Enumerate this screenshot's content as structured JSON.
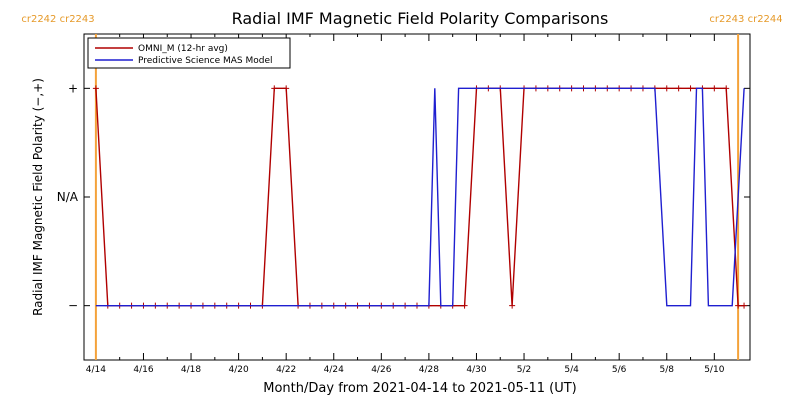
{
  "chart_data": {
    "type": "line",
    "title": "Radial IMF Magnetic Field Polarity Comparisons",
    "xlabel": "Month/Day from 2021-04-14 to 2021-05-11 (UT)",
    "ylabel": "Radial IMF Magnetic Field Polarity (−,+)",
    "x_range": [
      "2021-04-14",
      "2021-05-11"
    ],
    "x_ticks": [
      {
        "date": "2021-04-14",
        "label": "4/14"
      },
      {
        "date": "2021-04-16",
        "label": "4/16"
      },
      {
        "date": "2021-04-18",
        "label": "4/18"
      },
      {
        "date": "2021-04-20",
        "label": "4/20"
      },
      {
        "date": "2021-04-22",
        "label": "4/22"
      },
      {
        "date": "2021-04-24",
        "label": "4/24"
      },
      {
        "date": "2021-04-26",
        "label": "4/26"
      },
      {
        "date": "2021-04-28",
        "label": "4/28"
      },
      {
        "date": "2021-04-30",
        "label": "4/30"
      },
      {
        "date": "2021-05-02",
        "label": "5/2"
      },
      {
        "date": "2021-05-04",
        "label": "5/4"
      },
      {
        "date": "2021-05-06",
        "label": "5/6"
      },
      {
        "date": "2021-05-08",
        "label": "5/8"
      },
      {
        "date": "2021-05-10",
        "label": "5/10"
      }
    ],
    "y_ticks": [
      {
        "value": 1,
        "label": "+"
      },
      {
        "value": 0,
        "label": "N/A"
      },
      {
        "value": -1,
        "label": "−"
      }
    ],
    "ylim": [
      -1.5,
      1.5
    ],
    "carrington_markers": [
      {
        "date": "2021-04-14",
        "label": "cr2242 cr2243",
        "position": "left"
      },
      {
        "date": "2021-05-11",
        "label": "cr2243 cr2244",
        "position": "right"
      }
    ],
    "colors": {
      "omni": "#b00000",
      "model": "#1f1fd0",
      "marker_line": "#f4a23a",
      "cr_text": "#e69a2a"
    },
    "series": [
      {
        "name": "OMNI_M (12-hr avg)",
        "color": "#b00000",
        "markers": "+",
        "points": [
          [
            "2021-04-14T00:00",
            1
          ],
          [
            "2021-04-14T12:00",
            -1
          ],
          [
            "2021-04-15T00:00",
            -1
          ],
          [
            "2021-04-15T12:00",
            -1
          ],
          [
            "2021-04-16T00:00",
            -1
          ],
          [
            "2021-04-16T12:00",
            -1
          ],
          [
            "2021-04-17T00:00",
            -1
          ],
          [
            "2021-04-17T12:00",
            -1
          ],
          [
            "2021-04-18T00:00",
            -1
          ],
          [
            "2021-04-18T12:00",
            -1
          ],
          [
            "2021-04-19T00:00",
            -1
          ],
          [
            "2021-04-19T12:00",
            -1
          ],
          [
            "2021-04-20T00:00",
            -1
          ],
          [
            "2021-04-20T12:00",
            -1
          ],
          [
            "2021-04-21T00:00",
            -1
          ],
          [
            "2021-04-21T12:00",
            1
          ],
          [
            "2021-04-22T00:00",
            1
          ],
          [
            "2021-04-22T12:00",
            -1
          ],
          [
            "2021-04-23T00:00",
            -1
          ],
          [
            "2021-04-23T12:00",
            -1
          ],
          [
            "2021-04-24T00:00",
            -1
          ],
          [
            "2021-04-24T12:00",
            -1
          ],
          [
            "2021-04-25T00:00",
            -1
          ],
          [
            "2021-04-25T12:00",
            -1
          ],
          [
            "2021-04-26T00:00",
            -1
          ],
          [
            "2021-04-26T12:00",
            -1
          ],
          [
            "2021-04-27T00:00",
            -1
          ],
          [
            "2021-04-27T12:00",
            -1
          ],
          [
            "2021-04-28T00:00",
            -1
          ],
          [
            "2021-04-28T12:00",
            -1
          ],
          [
            "2021-04-29T00:00",
            -1
          ],
          [
            "2021-04-29T12:00",
            -1
          ],
          [
            "2021-04-30T00:00",
            1
          ],
          [
            "2021-04-30T12:00",
            1
          ],
          [
            "2021-05-01T00:00",
            1
          ],
          [
            "2021-05-01T12:00",
            -1
          ],
          [
            "2021-05-02T00:00",
            1
          ],
          [
            "2021-05-02T12:00",
            1
          ],
          [
            "2021-05-03T00:00",
            1
          ],
          [
            "2021-05-03T12:00",
            1
          ],
          [
            "2021-05-04T00:00",
            1
          ],
          [
            "2021-05-04T12:00",
            1
          ],
          [
            "2021-05-05T00:00",
            1
          ],
          [
            "2021-05-05T12:00",
            1
          ],
          [
            "2021-05-06T00:00",
            1
          ],
          [
            "2021-05-06T12:00",
            1
          ],
          [
            "2021-05-07T00:00",
            1
          ],
          [
            "2021-05-07T12:00",
            1
          ],
          [
            "2021-05-08T00:00",
            1
          ],
          [
            "2021-05-08T12:00",
            1
          ],
          [
            "2021-05-09T00:00",
            1
          ],
          [
            "2021-05-09T12:00",
            1
          ],
          [
            "2021-05-10T00:00",
            1
          ],
          [
            "2021-05-10T12:00",
            1
          ],
          [
            "2021-05-11T00:00",
            -1
          ],
          [
            "2021-05-11T06:00",
            -1
          ]
        ]
      },
      {
        "name": "Predictive Science MAS Model",
        "color": "#1f1fd0",
        "markers": "none",
        "points": [
          [
            "2021-04-14T00:00",
            -1
          ],
          [
            "2021-04-28T00:00",
            -1
          ],
          [
            "2021-04-28T06:00",
            1
          ],
          [
            "2021-04-28T12:00",
            -1
          ],
          [
            "2021-04-29T00:00",
            -1
          ],
          [
            "2021-04-29T06:00",
            1
          ],
          [
            "2021-05-07T12:00",
            1
          ],
          [
            "2021-05-08T00:00",
            -1
          ],
          [
            "2021-05-09T00:00",
            -1
          ],
          [
            "2021-05-09T06:00",
            1
          ],
          [
            "2021-05-09T12:00",
            1
          ],
          [
            "2021-05-09T18:00",
            -1
          ],
          [
            "2021-05-10T18:00",
            -1
          ],
          [
            "2021-05-11T06:00",
            1
          ]
        ]
      }
    ]
  }
}
